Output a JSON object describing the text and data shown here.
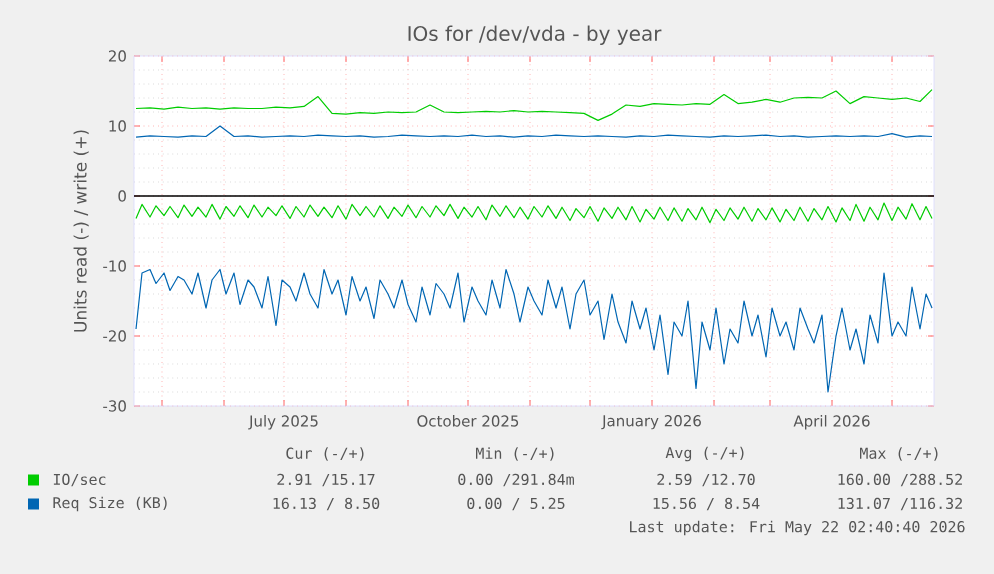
{
  "chart_data": {
    "type": "line",
    "title": "IOs for /dev/vda - by year",
    "ylabel": "Units read (-) / write (+)",
    "xlim": [
      "2025-04-17",
      "2026-05-22"
    ],
    "xticks": [
      {
        "value": "2025-05-01",
        "label": null
      },
      {
        "value": "2025-06-01",
        "label": null
      },
      {
        "value": "2025-07-01",
        "label": "July 2025"
      },
      {
        "value": "2025-08-01",
        "label": null
      },
      {
        "value": "2025-09-01",
        "label": null
      },
      {
        "value": "2025-10-01",
        "label": "October 2025"
      },
      {
        "value": "2025-11-01",
        "label": null
      },
      {
        "value": "2025-12-01",
        "label": null
      },
      {
        "value": "2026-01-01",
        "label": "January 2026"
      },
      {
        "value": "2026-02-01",
        "label": null
      },
      {
        "value": "2026-03-01",
        "label": null
      },
      {
        "value": "2026-04-01",
        "label": "April 2026"
      },
      {
        "value": "2026-05-01",
        "label": null
      }
    ],
    "ylim": [
      -30,
      20
    ],
    "yticks": [
      -30,
      -20,
      -10,
      0,
      10,
      20
    ],
    "grid": true,
    "legend": "bottom",
    "line_style": "solid",
    "marker": "none",
    "ref_lines": [
      {
        "axis": "y",
        "value": 0,
        "color": "#000000"
      }
    ],
    "annotations": [
      "Cur (-/+)",
      "Min (-/+)",
      "Avg (-/+)",
      "Max (-/+)",
      "2.91 /15.17",
      "0.00 /291.84m",
      "2.59 /12.70",
      "160.00 /288.52",
      "16.13 / 8.50",
      "0.00 / 5.25",
      "15.56 / 8.54",
      "131.07 /116.32",
      "Last update: Fri May 22 02:40:40 2026"
    ],
    "series": [
      {
        "name": "IO/sec",
        "color": "#00cc00",
        "x": [
          "2025-04-18",
          "2025-04-21",
          "2025-04-25",
          "2025-04-28",
          "2025-05-02",
          "2025-05-05",
          "2025-05-09",
          "2025-05-12",
          "2025-05-16",
          "2025-05-19",
          "2025-05-23",
          "2025-05-26",
          "2025-05-30",
          "2025-06-02",
          "2025-06-06",
          "2025-06-09",
          "2025-06-13",
          "2025-06-16",
          "2025-06-20",
          "2025-06-23",
          "2025-06-27",
          "2025-06-30",
          "2025-07-04",
          "2025-07-07",
          "2025-07-11",
          "2025-07-14",
          "2025-07-18",
          "2025-07-21",
          "2025-07-25",
          "2025-07-28",
          "2025-08-01",
          "2025-08-04",
          "2025-08-08",
          "2025-08-11",
          "2025-08-15",
          "2025-08-18",
          "2025-08-22",
          "2025-08-25",
          "2025-08-29",
          "2025-09-01",
          "2025-09-05",
          "2025-09-08",
          "2025-09-12",
          "2025-09-15",
          "2025-09-19",
          "2025-09-22",
          "2025-09-26",
          "2025-09-29",
          "2025-10-03",
          "2025-10-06",
          "2025-10-10",
          "2025-10-13",
          "2025-10-17",
          "2025-10-20",
          "2025-10-24",
          "2025-10-27",
          "2025-10-31",
          "2025-11-03",
          "2025-11-07",
          "2025-11-10",
          "2025-11-14",
          "2025-11-17",
          "2025-11-21",
          "2025-11-24",
          "2025-11-28",
          "2025-12-01",
          "2025-12-05",
          "2025-12-08",
          "2025-12-12",
          "2025-12-15",
          "2025-12-19",
          "2025-12-22",
          "2025-12-26",
          "2025-12-29",
          "2026-01-02",
          "2026-01-05",
          "2026-01-09",
          "2026-01-12",
          "2026-01-16",
          "2026-01-19",
          "2026-01-23",
          "2026-01-26",
          "2026-01-30",
          "2026-02-02",
          "2026-02-06",
          "2026-02-09",
          "2026-02-13",
          "2026-02-16",
          "2026-02-20",
          "2026-02-23",
          "2026-02-27",
          "2026-03-02",
          "2026-03-06",
          "2026-03-09",
          "2026-03-13",
          "2026-03-16",
          "2026-03-20",
          "2026-03-23",
          "2026-03-27",
          "2026-03-30",
          "2026-04-03",
          "2026-04-06",
          "2026-04-10",
          "2026-04-13",
          "2026-04-17",
          "2026-04-20",
          "2026-04-24",
          "2026-04-27",
          "2026-05-01",
          "2026-05-04",
          "2026-05-08",
          "2026-05-11",
          "2026-05-15",
          "2026-05-18",
          "2026-05-21"
        ],
        "values": [
          -3.2,
          -1.2,
          -3.0,
          -1.4,
          -2.8,
          -1.5,
          -3.1,
          -1.3,
          -2.9,
          -1.6,
          -3.0,
          -1.2,
          -3.3,
          -1.5,
          -2.9,
          -1.4,
          -3.1,
          -1.3,
          -3.0,
          -1.6,
          -2.8,
          -1.4,
          -3.2,
          -1.5,
          -3.0,
          -1.3,
          -2.9,
          -1.6,
          -3.1,
          -1.4,
          -3.3,
          -1.2,
          -2.8,
          -1.5,
          -3.0,
          -1.4,
          -3.2,
          -1.6,
          -2.9,
          -1.3,
          -3.1,
          -1.5,
          -3.0,
          -1.4,
          -2.8,
          -1.2,
          -3.2,
          -1.6,
          -3.0,
          -1.5,
          -3.4,
          -1.3,
          -2.9,
          -1.4,
          -3.1,
          -1.6,
          -3.3,
          -1.5,
          -3.0,
          -1.4,
          -3.2,
          -1.6,
          -3.5,
          -1.8,
          -3.1,
          -1.5,
          -3.6,
          -1.7,
          -3.2,
          -1.6,
          -3.4,
          -1.5,
          -3.7,
          -1.9,
          -3.3,
          -1.6,
          -3.5,
          -1.7,
          -3.6,
          -1.8,
          -3.4,
          -1.6,
          -3.8,
          -1.9,
          -3.5,
          -1.7,
          -3.3,
          -1.6,
          -3.6,
          -1.8,
          -3.4,
          -1.7,
          -3.7,
          -1.9,
          -3.5,
          -1.6,
          -3.6,
          -1.8,
          -3.4,
          -1.5,
          -3.7,
          -1.7,
          -3.5,
          -1.2,
          -3.6,
          -1.6,
          -3.4,
          -1.0,
          -3.5,
          -1.6,
          -3.3,
          -1.1,
          -3.4,
          -1.5,
          -3.2
        ]
      },
      {
        "color": "#00cc00",
        "x": [
          "2025-04-18",
          "2025-04-25",
          "2025-05-02",
          "2025-05-09",
          "2025-05-16",
          "2025-05-23",
          "2025-05-30",
          "2025-06-06",
          "2025-06-13",
          "2025-06-20",
          "2025-06-27",
          "2025-07-04",
          "2025-07-11",
          "2025-07-18",
          "2025-07-25",
          "2025-08-01",
          "2025-08-08",
          "2025-08-15",
          "2025-08-22",
          "2025-08-29",
          "2025-09-05",
          "2025-09-12",
          "2025-09-19",
          "2025-09-26",
          "2025-10-03",
          "2025-10-10",
          "2025-10-17",
          "2025-10-24",
          "2025-10-31",
          "2025-11-07",
          "2025-11-14",
          "2025-11-21",
          "2025-11-28",
          "2025-12-05",
          "2025-12-12",
          "2025-12-19",
          "2025-12-26",
          "2026-01-02",
          "2026-01-09",
          "2026-01-16",
          "2026-01-23",
          "2026-01-30",
          "2026-02-06",
          "2026-02-13",
          "2026-02-20",
          "2026-02-27",
          "2026-03-06",
          "2026-03-13",
          "2026-03-20",
          "2026-03-27",
          "2026-04-03",
          "2026-04-10",
          "2026-04-17",
          "2026-04-24",
          "2026-05-01",
          "2026-05-08",
          "2026-05-15",
          "2026-05-21"
        ],
        "values": [
          12.5,
          12.6,
          12.4,
          12.7,
          12.5,
          12.6,
          12.4,
          12.6,
          12.5,
          12.5,
          12.7,
          12.6,
          12.8,
          14.2,
          11.8,
          11.7,
          11.9,
          11.8,
          12.0,
          11.9,
          12.0,
          13.0,
          12.0,
          11.9,
          12.0,
          12.1,
          12.0,
          12.2,
          12.0,
          12.1,
          12.0,
          11.9,
          11.8,
          10.8,
          11.7,
          13.0,
          12.8,
          13.2,
          13.1,
          13.0,
          13.2,
          13.1,
          14.5,
          13.2,
          13.4,
          13.8,
          13.4,
          14.0,
          14.1,
          14.0,
          15.0,
          13.2,
          14.2,
          14.0,
          13.8,
          14.0,
          13.5,
          15.2
        ]
      },
      {
        "name": "Req Size (KB)",
        "color": "#0066b3",
        "x": [
          "2025-04-18",
          "2025-04-21",
          "2025-04-25",
          "2025-04-28",
          "2025-05-02",
          "2025-05-05",
          "2025-05-09",
          "2025-05-12",
          "2025-05-16",
          "2025-05-19",
          "2025-05-23",
          "2025-05-26",
          "2025-05-30",
          "2025-06-02",
          "2025-06-06",
          "2025-06-09",
          "2025-06-13",
          "2025-06-16",
          "2025-06-20",
          "2025-06-23",
          "2025-06-27",
          "2025-06-30",
          "2025-07-04",
          "2025-07-07",
          "2025-07-11",
          "2025-07-14",
          "2025-07-18",
          "2025-07-21",
          "2025-07-25",
          "2025-07-28",
          "2025-08-01",
          "2025-08-04",
          "2025-08-08",
          "2025-08-11",
          "2025-08-15",
          "2025-08-18",
          "2025-08-22",
          "2025-08-25",
          "2025-08-29",
          "2025-09-01",
          "2025-09-05",
          "2025-09-08",
          "2025-09-12",
          "2025-09-15",
          "2025-09-19",
          "2025-09-22",
          "2025-09-26",
          "2025-09-29",
          "2025-10-03",
          "2025-10-06",
          "2025-10-10",
          "2025-10-13",
          "2025-10-17",
          "2025-10-20",
          "2025-10-24",
          "2025-10-27",
          "2025-10-31",
          "2025-11-03",
          "2025-11-07",
          "2025-11-10",
          "2025-11-14",
          "2025-11-17",
          "2025-11-21",
          "2025-11-24",
          "2025-11-28",
          "2025-12-01",
          "2025-12-05",
          "2025-12-08",
          "2025-12-12",
          "2025-12-15",
          "2025-12-19",
          "2025-12-22",
          "2025-12-26",
          "2025-12-29",
          "2026-01-02",
          "2026-01-05",
          "2026-01-09",
          "2026-01-12",
          "2026-01-16",
          "2026-01-19",
          "2026-01-23",
          "2026-01-26",
          "2026-01-30",
          "2026-02-02",
          "2026-02-06",
          "2026-02-09",
          "2026-02-13",
          "2026-02-16",
          "2026-02-20",
          "2026-02-23",
          "2026-02-27",
          "2026-03-02",
          "2026-03-06",
          "2026-03-09",
          "2026-03-13",
          "2026-03-16",
          "2026-03-20",
          "2026-03-23",
          "2026-03-27",
          "2026-03-30",
          "2026-04-03",
          "2026-04-06",
          "2026-04-10",
          "2026-04-13",
          "2026-04-17",
          "2026-04-20",
          "2026-04-24",
          "2026-04-27",
          "2026-05-01",
          "2026-05-04",
          "2026-05-08",
          "2026-05-11",
          "2026-05-15",
          "2026-05-18",
          "2026-05-21"
        ],
        "values": [
          -19,
          -11,
          -10.5,
          -12.5,
          -11,
          -13.5,
          -11.5,
          -12,
          -14,
          -11,
          -16,
          -12,
          -10.5,
          -14,
          -11,
          -15.5,
          -12,
          -13,
          -16,
          -11.5,
          -18.5,
          -12,
          -13,
          -15,
          -11,
          -14,
          -16,
          -10.5,
          -14,
          -12,
          -17,
          -11.5,
          -15,
          -13,
          -17.5,
          -12,
          -14,
          -16,
          -12,
          -15.5,
          -18,
          -13,
          -17,
          -12.5,
          -14,
          -16,
          -11,
          -18,
          -13,
          -15,
          -17,
          -12,
          -16,
          -10.5,
          -14,
          -18,
          -13,
          -15,
          -17,
          -12,
          -16,
          -13,
          -19,
          -14,
          -12,
          -17,
          -15,
          -20.5,
          -14,
          -18,
          -21,
          -15,
          -19,
          -16,
          -22,
          -17,
          -25.5,
          -18,
          -20,
          -15,
          -27.5,
          -18,
          -22,
          -16,
          -24,
          -19,
          -21,
          -15,
          -20,
          -17,
          -23,
          -16,
          -20,
          -18,
          -22,
          -16,
          -19,
          -21,
          -17,
          -28,
          -20,
          -16,
          -22,
          -19,
          -24,
          -17,
          -21,
          -11,
          -20,
          -18,
          -20,
          -13,
          -19,
          -14,
          -16
        ]
      },
      {
        "color": "#0066b3",
        "x": [
          "2025-04-18",
          "2025-04-25",
          "2025-05-02",
          "2025-05-09",
          "2025-05-16",
          "2025-05-23",
          "2025-05-30",
          "2025-06-06",
          "2025-06-13",
          "2025-06-20",
          "2025-06-27",
          "2025-07-04",
          "2025-07-11",
          "2025-07-18",
          "2025-07-25",
          "2025-08-01",
          "2025-08-08",
          "2025-08-15",
          "2025-08-22",
          "2025-08-29",
          "2025-09-05",
          "2025-09-12",
          "2025-09-19",
          "2025-09-26",
          "2025-10-03",
          "2025-10-10",
          "2025-10-17",
          "2025-10-24",
          "2025-10-31",
          "2025-11-07",
          "2025-11-14",
          "2025-11-21",
          "2025-11-28",
          "2025-12-05",
          "2025-12-12",
          "2025-12-19",
          "2025-12-26",
          "2026-01-02",
          "2026-01-09",
          "2026-01-16",
          "2026-01-23",
          "2026-01-30",
          "2026-02-06",
          "2026-02-13",
          "2026-02-20",
          "2026-02-27",
          "2026-03-06",
          "2026-03-13",
          "2026-03-20",
          "2026-03-27",
          "2026-04-03",
          "2026-04-10",
          "2026-04-17",
          "2026-04-24",
          "2026-05-01",
          "2026-05-08",
          "2026-05-15",
          "2026-05-21"
        ],
        "values": [
          8.4,
          8.6,
          8.5,
          8.4,
          8.6,
          8.5,
          10.0,
          8.5,
          8.6,
          8.4,
          8.5,
          8.6,
          8.5,
          8.7,
          8.6,
          8.5,
          8.6,
          8.4,
          8.5,
          8.7,
          8.6,
          8.5,
          8.6,
          8.5,
          8.7,
          8.5,
          8.6,
          8.4,
          8.6,
          8.5,
          8.7,
          8.6,
          8.5,
          8.6,
          8.5,
          8.4,
          8.6,
          8.5,
          8.7,
          8.6,
          8.5,
          8.4,
          8.6,
          8.5,
          8.6,
          8.7,
          8.5,
          8.6,
          8.4,
          8.5,
          8.6,
          8.5,
          8.6,
          8.5,
          8.9,
          8.4,
          8.6,
          8.5
        ]
      }
    ]
  }
}
